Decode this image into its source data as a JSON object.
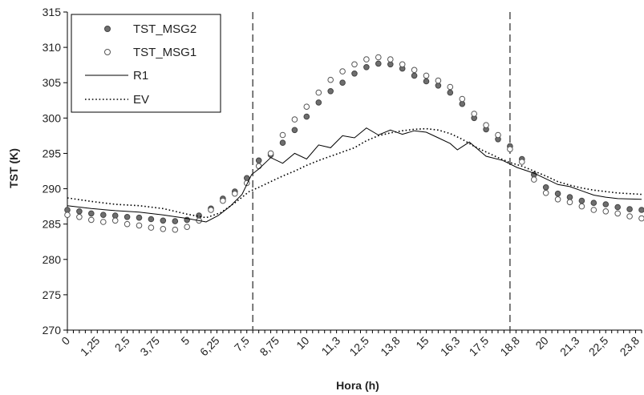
{
  "chart_data": {
    "type": "scatter",
    "xlabel": "Hora (h)",
    "ylabel": "TST (K)",
    "xlim": [
      0,
      24
    ],
    "ylim": [
      270,
      315
    ],
    "yticks": [
      270,
      275,
      280,
      285,
      290,
      295,
      300,
      305,
      310,
      315
    ],
    "xtick_labels": [
      {
        "x": 0,
        "label": "0"
      },
      {
        "x": 1.25,
        "label": "1,25"
      },
      {
        "x": 2.5,
        "label": "2,5"
      },
      {
        "x": 3.75,
        "label": "3,75"
      },
      {
        "x": 5,
        "label": "5"
      },
      {
        "x": 6.25,
        "label": "6,25"
      },
      {
        "x": 7.5,
        "label": "7,5"
      },
      {
        "x": 8.75,
        "label": "8,75"
      },
      {
        "x": 10,
        "label": "10"
      },
      {
        "x": 11.3,
        "label": "11,3"
      },
      {
        "x": 12.5,
        "label": "12,5"
      },
      {
        "x": 13.8,
        "label": "13,8"
      },
      {
        "x": 15,
        "label": "15"
      },
      {
        "x": 16.3,
        "label": "16,3"
      },
      {
        "x": 17.5,
        "label": "17,5"
      },
      {
        "x": 18.8,
        "label": "18,8"
      },
      {
        "x": 20,
        "label": "20"
      },
      {
        "x": 21.3,
        "label": "21,3"
      },
      {
        "x": 22.5,
        "label": "22,5"
      },
      {
        "x": 23.8,
        "label": "23,8"
      }
    ],
    "vlines": [
      7.75,
      18.5
    ],
    "grid": false,
    "legend_position": "top-left",
    "series": [
      {
        "name": "TST_MSG2",
        "style": "filled-marker",
        "color": "#6e6e6e",
        "points": [
          [
            0,
            287
          ],
          [
            0.5,
            286.8
          ],
          [
            1,
            286.5
          ],
          [
            1.5,
            286.3
          ],
          [
            2,
            286.2
          ],
          [
            2.5,
            286
          ],
          [
            3,
            285.9
          ],
          [
            3.5,
            285.7
          ],
          [
            4,
            285.5
          ],
          [
            4.5,
            285.4
          ],
          [
            5,
            285.6
          ],
          [
            5.5,
            286.2
          ],
          [
            6,
            287.2
          ],
          [
            6.5,
            288.6
          ],
          [
            7,
            289.6
          ],
          [
            7.5,
            291.5
          ],
          [
            8,
            294
          ],
          [
            8.5,
            294.8
          ],
          [
            9,
            296.5
          ],
          [
            9.5,
            298.3
          ],
          [
            10,
            300.2
          ],
          [
            10.5,
            302.2
          ],
          [
            11,
            303.8
          ],
          [
            11.5,
            305
          ],
          [
            12,
            306.3
          ],
          [
            12.5,
            307.2
          ],
          [
            13,
            307.7
          ],
          [
            13.5,
            307.6
          ],
          [
            14,
            307
          ],
          [
            14.5,
            306
          ],
          [
            15,
            305.2
          ],
          [
            15.5,
            304.6
          ],
          [
            16,
            303.6
          ],
          [
            16.5,
            302
          ],
          [
            17,
            300
          ],
          [
            17.5,
            298.4
          ],
          [
            18,
            297
          ],
          [
            18.5,
            296
          ],
          [
            19,
            294.2
          ],
          [
            19.5,
            292
          ],
          [
            20,
            290.2
          ],
          [
            20.5,
            289.3
          ],
          [
            21,
            288.8
          ],
          [
            21.5,
            288.3
          ],
          [
            22,
            288
          ],
          [
            22.5,
            287.8
          ],
          [
            23,
            287.4
          ],
          [
            23.5,
            287.1
          ],
          [
            24,
            287
          ]
        ]
      },
      {
        "name": "TST_MSG1",
        "style": "open-marker",
        "color": "#555555",
        "points": [
          [
            0,
            286.3
          ],
          [
            0.5,
            286
          ],
          [
            1,
            285.6
          ],
          [
            1.5,
            285.3
          ],
          [
            2,
            285.5
          ],
          [
            2.5,
            285
          ],
          [
            3,
            284.8
          ],
          [
            3.5,
            284.5
          ],
          [
            4,
            284.3
          ],
          [
            4.5,
            284.2
          ],
          [
            5,
            284.6
          ],
          [
            5.5,
            285.5
          ],
          [
            6,
            287
          ],
          [
            6.5,
            288.3
          ],
          [
            7,
            289.3
          ],
          [
            7.5,
            290.8
          ],
          [
            8,
            293.2
          ],
          [
            8.5,
            295
          ],
          [
            9,
            297.6
          ],
          [
            9.5,
            299.8
          ],
          [
            10,
            301.6
          ],
          [
            10.5,
            303.6
          ],
          [
            11,
            305.4
          ],
          [
            11.5,
            306.6
          ],
          [
            12,
            307.6
          ],
          [
            12.5,
            308.3
          ],
          [
            13,
            308.6
          ],
          [
            13.5,
            308.3
          ],
          [
            14,
            307.6
          ],
          [
            14.5,
            306.8
          ],
          [
            15,
            306
          ],
          [
            15.5,
            305.3
          ],
          [
            16,
            304.4
          ],
          [
            16.5,
            302.7
          ],
          [
            17,
            300.6
          ],
          [
            17.5,
            299
          ],
          [
            18,
            297.6
          ],
          [
            18.5,
            295.6
          ],
          [
            19,
            293.8
          ],
          [
            19.5,
            291.3
          ],
          [
            20,
            289.4
          ],
          [
            20.5,
            288.5
          ],
          [
            21,
            288.1
          ],
          [
            21.5,
            287.5
          ],
          [
            22,
            287
          ],
          [
            22.5,
            286.8
          ],
          [
            23,
            286.5
          ],
          [
            23.5,
            286.1
          ],
          [
            24,
            285.8
          ]
        ]
      },
      {
        "name": "R1",
        "style": "solid-line",
        "color": "#000000",
        "points": [
          [
            0,
            287.6
          ],
          [
            1,
            287.2
          ],
          [
            2,
            286.9
          ],
          [
            3,
            286.7
          ],
          [
            4,
            286.3
          ],
          [
            5,
            285.8
          ],
          [
            5.8,
            285.3
          ],
          [
            6.3,
            286.2
          ],
          [
            6.8,
            287.5
          ],
          [
            7.3,
            289.2
          ],
          [
            7.7,
            292
          ],
          [
            8,
            292.8
          ],
          [
            8.5,
            294.4
          ],
          [
            9,
            293.6
          ],
          [
            9.5,
            295
          ],
          [
            10,
            294.2
          ],
          [
            10.5,
            296.2
          ],
          [
            11,
            295.8
          ],
          [
            11.5,
            297.5
          ],
          [
            12,
            297.2
          ],
          [
            12.5,
            298.6
          ],
          [
            13,
            297.6
          ],
          [
            13.5,
            298.3
          ],
          [
            14,
            297.7
          ],
          [
            14.5,
            298.2
          ],
          [
            15,
            298
          ],
          [
            15.5,
            297.2
          ],
          [
            16,
            296.4
          ],
          [
            16.3,
            295.5
          ],
          [
            16.8,
            296.6
          ],
          [
            17.5,
            294.6
          ],
          [
            18.2,
            294
          ],
          [
            18.8,
            293
          ],
          [
            19.5,
            292.2
          ],
          [
            20,
            291.4
          ],
          [
            20.5,
            290.6
          ],
          [
            21,
            290.3
          ],
          [
            21.5,
            289.7
          ],
          [
            22,
            289.1
          ],
          [
            22.5,
            288.8
          ],
          [
            23,
            288.6
          ],
          [
            24,
            288.5
          ]
        ]
      },
      {
        "name": "EV",
        "style": "dotted-line",
        "color": "#000000",
        "points": [
          [
            0,
            288.7
          ],
          [
            1,
            288.2
          ],
          [
            2,
            287.8
          ],
          [
            3,
            287.6
          ],
          [
            4,
            287.2
          ],
          [
            5,
            286.4
          ],
          [
            5.8,
            285.9
          ],
          [
            6.4,
            286.6
          ],
          [
            7,
            288
          ],
          [
            7.6,
            289.6
          ],
          [
            8,
            290.2
          ],
          [
            8.5,
            291
          ],
          [
            9,
            291.8
          ],
          [
            9.5,
            292.5
          ],
          [
            10,
            293.3
          ],
          [
            10.5,
            294
          ],
          [
            11,
            294.6
          ],
          [
            11.5,
            295.2
          ],
          [
            12,
            295.8
          ],
          [
            12.5,
            296.8
          ],
          [
            13,
            297.5
          ],
          [
            13.5,
            297.9
          ],
          [
            14,
            298.2
          ],
          [
            14.5,
            298.4
          ],
          [
            15,
            298.5
          ],
          [
            15.5,
            298.3
          ],
          [
            16,
            297.8
          ],
          [
            16.5,
            297
          ],
          [
            17,
            296
          ],
          [
            17.5,
            295.2
          ],
          [
            18,
            294.4
          ],
          [
            18.5,
            293.7
          ],
          [
            19,
            293.2
          ],
          [
            19.5,
            292.5
          ],
          [
            20,
            291.8
          ],
          [
            20.5,
            291
          ],
          [
            21,
            290.5
          ],
          [
            21.5,
            290.1
          ],
          [
            22,
            289.8
          ],
          [
            22.5,
            289.6
          ],
          [
            23,
            289.4
          ],
          [
            24,
            289.2
          ]
        ]
      }
    ]
  }
}
